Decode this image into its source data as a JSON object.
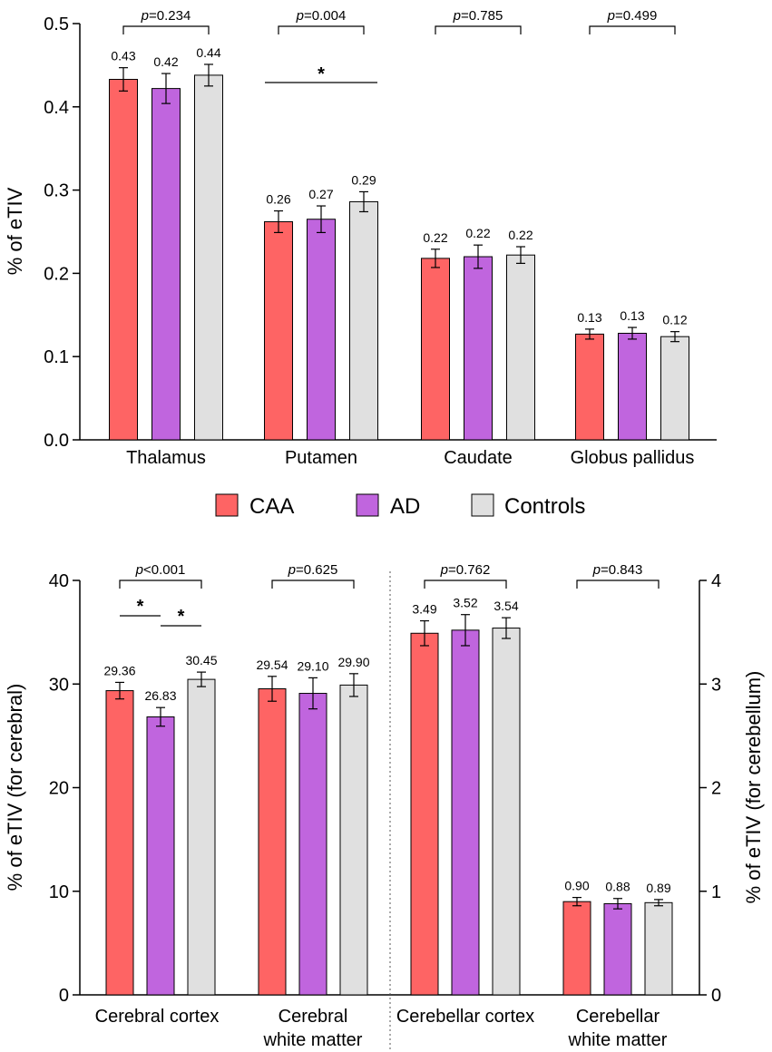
{
  "legend": [
    {
      "name": "CAA",
      "color": "#fe6464"
    },
    {
      "name": "AD",
      "color": "#c065de"
    },
    {
      "name": "Controls",
      "color": "#e0e0e0"
    }
  ],
  "chart_data": [
    {
      "type": "bar",
      "panel": "top",
      "ylabel": "% of eTIV",
      "ylim": [
        0,
        0.5
      ],
      "yticks": [
        "0.0",
        "0.1",
        "0.2",
        "0.3",
        "0.4",
        "0.5"
      ],
      "categories": [
        "Thalamus",
        "Putamen",
        "Caudate",
        "Globus pallidus"
      ],
      "series": [
        {
          "name": "CAA",
          "values": [
            0.433,
            0.262,
            0.218,
            0.127
          ],
          "errors": [
            0.014,
            0.013,
            0.011,
            0.006
          ],
          "labels": [
            "0.43",
            "0.26",
            "0.22",
            "0.13"
          ]
        },
        {
          "name": "AD",
          "values": [
            0.422,
            0.265,
            0.22,
            0.128
          ],
          "errors": [
            0.018,
            0.016,
            0.014,
            0.007
          ],
          "labels": [
            "0.42",
            "0.27",
            "0.22",
            "0.13"
          ]
        },
        {
          "name": "Controls",
          "values": [
            0.438,
            0.286,
            0.222,
            0.124
          ],
          "errors": [
            0.013,
            0.012,
            0.01,
            0.006
          ],
          "labels": [
            "0.44",
            "0.29",
            "0.22",
            "0.12"
          ]
        }
      ],
      "p_values": [
        {
          "prefix": "p",
          "value": "=0.234"
        },
        {
          "prefix": "p",
          "value": "=0.004"
        },
        {
          "prefix": "p",
          "value": "=0.785"
        },
        {
          "prefix": "p",
          "value": "=0.499"
        }
      ],
      "significance": [
        {
          "category": "Putamen",
          "from": "CAA",
          "to": "Controls",
          "mark": "*"
        }
      ]
    },
    {
      "type": "bar",
      "panel": "bottom",
      "ylabel_left": "% of eTIV  (for cerebral)",
      "ylabel_right": "% of eTIV  (for cerebellum)",
      "ylim_left": [
        0,
        40
      ],
      "ylim_right": [
        0,
        4
      ],
      "yticks_left": [
        "0",
        "10",
        "20",
        "30",
        "40"
      ],
      "yticks_right": [
        "0",
        "1",
        "2",
        "3",
        "4"
      ],
      "categories": [
        {
          "line1": "Cerebral cortex",
          "line2": "",
          "axis": "left"
        },
        {
          "line1": "Cerebral",
          "line2": "white matter",
          "axis": "left"
        },
        {
          "line1": "Cerebellar cortex",
          "line2": "",
          "axis": "right"
        },
        {
          "line1": "Cerebellar",
          "line2": "white matter",
          "axis": "right"
        }
      ],
      "series": [
        {
          "name": "CAA",
          "values": [
            29.36,
            29.54,
            3.49,
            0.9
          ],
          "errors": [
            0.8,
            1.2,
            0.12,
            0.04
          ],
          "labels": [
            "29.36",
            "29.54",
            "3.49",
            "0.90"
          ]
        },
        {
          "name": "AD",
          "values": [
            26.83,
            29.1,
            3.52,
            0.88
          ],
          "errors": [
            0.9,
            1.5,
            0.15,
            0.05
          ],
          "labels": [
            "26.83",
            "29.10",
            "3.52",
            "0.88"
          ]
        },
        {
          "name": "Controls",
          "values": [
            30.45,
            29.9,
            3.54,
            0.89
          ],
          "errors": [
            0.7,
            1.1,
            0.1,
            0.03
          ],
          "labels": [
            "30.45",
            "29.90",
            "3.54",
            "0.89"
          ]
        }
      ],
      "p_values": [
        {
          "prefix": "p",
          "value": "<0.001"
        },
        {
          "prefix": "p",
          "value": "=0.625"
        },
        {
          "prefix": "p",
          "value": "=0.762"
        },
        {
          "prefix": "p",
          "value": "=0.843"
        }
      ],
      "significance": [
        {
          "category": "Cerebral cortex",
          "from": "CAA",
          "to": "AD",
          "mark": "*"
        },
        {
          "category": "Cerebral cortex",
          "from": "AD",
          "to": "Controls",
          "mark": "*"
        }
      ]
    }
  ]
}
